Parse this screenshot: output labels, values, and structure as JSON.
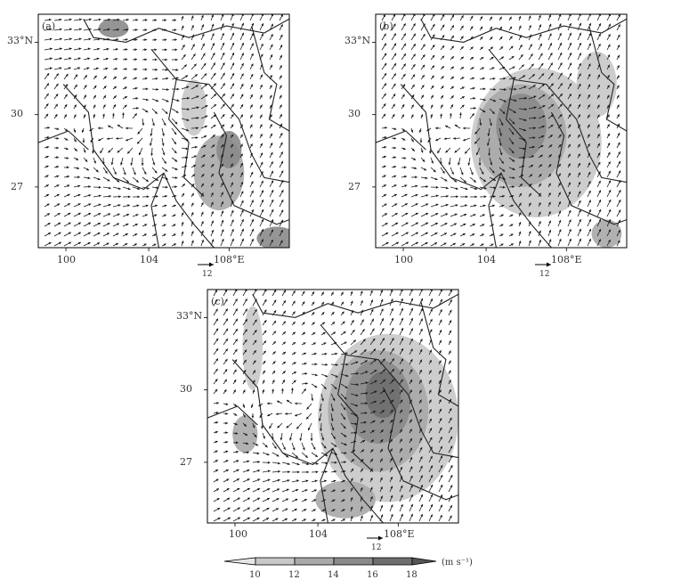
{
  "panels": [
    {
      "label": "(a)",
      "shade": "light"
    },
    {
      "label": "(b)",
      "shade": "medium"
    },
    {
      "label": "(c)",
      "shade": "strong"
    }
  ],
  "axis": {
    "lat_ticks": [
      "33°N",
      "30",
      "27"
    ],
    "lon_ticks": [
      "100",
      "104",
      "108°E"
    ]
  },
  "reference_vector": {
    "label": "12"
  },
  "colorbar": {
    "ticks": [
      "10",
      "12",
      "14",
      "16",
      "18"
    ],
    "unit": "(m s⁻¹)",
    "colors": [
      "#e6e6e6",
      "#c8c8c8",
      "#a9a9a9",
      "#8a8a8a",
      "#6e6e6e",
      "#555555"
    ]
  },
  "colors": {
    "vector": "#1a1a1a",
    "border": "#222222",
    "frame": "#000000"
  }
}
